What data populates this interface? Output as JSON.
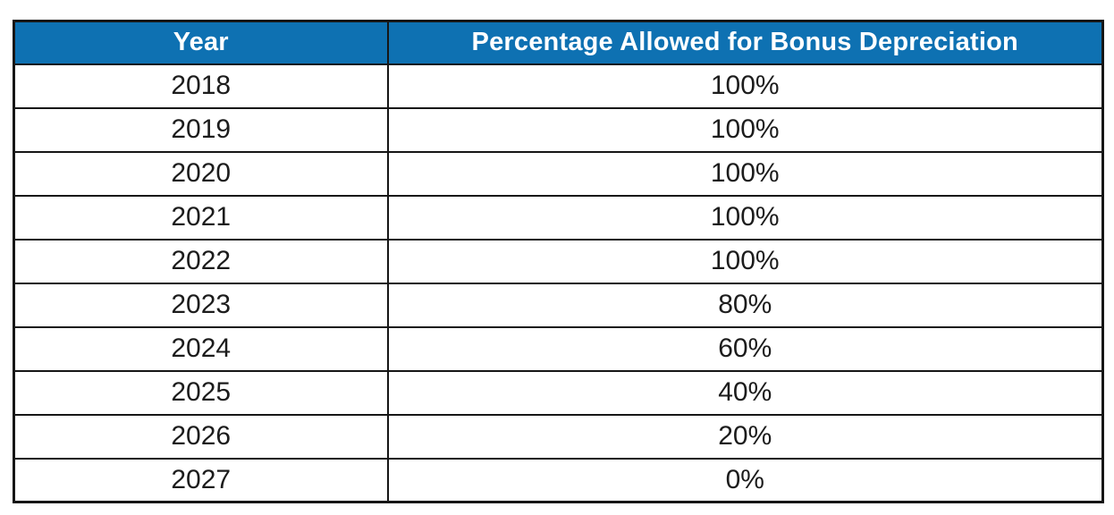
{
  "table": {
    "columns": [
      {
        "label": "Year"
      },
      {
        "label": "Percentage Allowed for Bonus Depreciation"
      }
    ],
    "rows": [
      {
        "year": "2018",
        "percentage": "100%"
      },
      {
        "year": "2019",
        "percentage": "100%"
      },
      {
        "year": "2020",
        "percentage": "100%"
      },
      {
        "year": "2021",
        "percentage": "100%"
      },
      {
        "year": "2022",
        "percentage": "100%"
      },
      {
        "year": "2023",
        "percentage": "80%"
      },
      {
        "year": "2024",
        "percentage": "60%"
      },
      {
        "year": "2025",
        "percentage": "40%"
      },
      {
        "year": "2026",
        "percentage": "20%"
      },
      {
        "year": "2027",
        "percentage": "0%"
      }
    ]
  },
  "colors": {
    "header_background": "#0e71b2",
    "header_text": "#ffffff",
    "border": "#161616",
    "body_text": "#1c1c1c"
  }
}
